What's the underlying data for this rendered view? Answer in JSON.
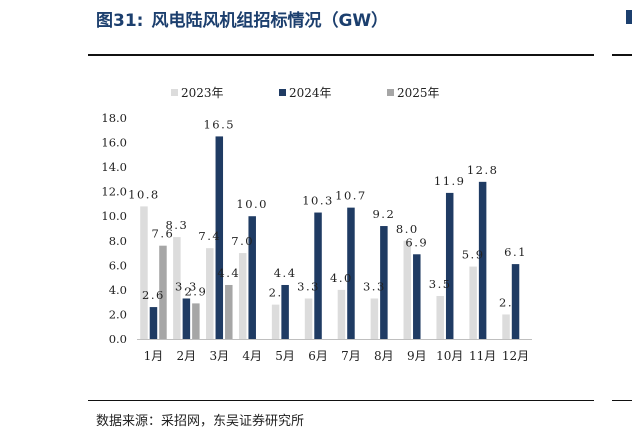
{
  "header": {
    "figure_number": "图31:",
    "title": "风电陆风机组招标情况（GW）"
  },
  "footer": {
    "source": "数据来源：采招网，东吴证券研究所"
  },
  "chart_data": {
    "type": "bar",
    "categories": [
      "1月",
      "2月",
      "3月",
      "4月",
      "5月",
      "6月",
      "7月",
      "8月",
      "9月",
      "10月",
      "11月",
      "12月"
    ],
    "series": [
      {
        "name": "2023年",
        "color": "#dcdcdc",
        "values": [
          10.8,
          8.3,
          7.4,
          7.0,
          2.8,
          3.3,
          4.0,
          3.3,
          8.0,
          3.5,
          5.9,
          2.0
        ]
      },
      {
        "name": "2024年",
        "color": "#1f3b63",
        "values": [
          2.6,
          3.3,
          16.5,
          10.0,
          4.4,
          10.3,
          10.7,
          9.2,
          6.9,
          11.9,
          12.8,
          6.1
        ]
      },
      {
        "name": "2025年",
        "color": "#a6a6a6",
        "values": [
          7.6,
          2.9,
          4.4,
          null,
          null,
          null,
          null,
          null,
          null,
          null,
          null,
          null
        ]
      }
    ],
    "data_labels": [
      [
        "10.8",
        "8.3",
        "7.4",
        "7.0",
        "",
        "",
        "4.0",
        "",
        "8.0",
        "",
        "5.9",
        ""
      ],
      [
        "2.6",
        "3.3",
        "16.5",
        "10.0",
        "4.4",
        "10.3",
        "10.7",
        "9.2",
        "6.9",
        "11.9",
        "12.8",
        "6.1"
      ],
      [
        "7.6",
        "2.9",
        "4.4",
        "",
        "",
        "",
        "",
        "",
        "",
        "",
        "",
        ""
      ]
    ],
    "occluded_labels": [
      [
        "",
        "",
        "",
        "",
        "2.",
        "3.3",
        "",
        "3.3",
        "",
        "3.5",
        "",
        "2."
      ],
      [
        "",
        "",
        "",
        "",
        "",
        "",
        "",
        "",
        "",
        "",
        "",
        ""
      ],
      [
        "",
        "",
        "",
        "",
        "",
        "",
        "",
        "",
        "",
        "",
        "",
        ""
      ]
    ],
    "ylim": [
      0,
      18
    ],
    "yticks": [
      "0.0",
      "2.0",
      "4.0",
      "6.0",
      "8.0",
      "10.0",
      "12.0",
      "14.0",
      "16.0",
      "18.0"
    ],
    "legend_position": "top",
    "grid": false
  }
}
